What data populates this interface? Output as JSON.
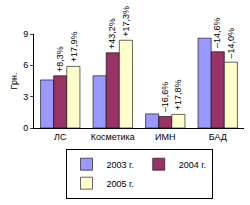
{
  "chart_data": {
    "type": "bar",
    "y_label": "Грн.",
    "categories": [
      "ЛС",
      "Косметика",
      "ИМН",
      "БАД"
    ],
    "series": [
      {
        "name": "2003 г.",
        "color": "#9999ff",
        "values": [
          4.6,
          5.0,
          1.35,
          8.6
        ]
      },
      {
        "name": "2004 г.",
        "color": "#993366",
        "values": [
          5.0,
          7.2,
          1.1,
          7.3
        ]
      },
      {
        "name": "2005 г.",
        "color": "#ffffcc",
        "values": [
          5.9,
          8.4,
          1.3,
          6.3
        ]
      }
    ],
    "annotations": [
      {
        "text": "+8,3%",
        "category": "ЛС",
        "series": "2004 г."
      },
      {
        "text": "+17,9%",
        "category": "ЛС",
        "series": "2005 г."
      },
      {
        "text": "+43,2%",
        "category": "Косметика",
        "series": "2004 г."
      },
      {
        "text": "+17,3%",
        "category": "Косметика",
        "series": "2005 г."
      },
      {
        "text": "–16,6%",
        "category": "ИМН",
        "series": "2004 г."
      },
      {
        "text": "+17,8%",
        "category": "ИМН",
        "series": "2005 г."
      },
      {
        "text": "–14,6%",
        "category": "БАД",
        "series": "2004 г."
      },
      {
        "text": "–14,0%",
        "category": "БАД",
        "series": "2005 г."
      }
    ],
    "ylim": [
      0,
      9
    ],
    "yticks": [
      0,
      3,
      6,
      9
    ],
    "grid": false,
    "legend": "bottom"
  }
}
